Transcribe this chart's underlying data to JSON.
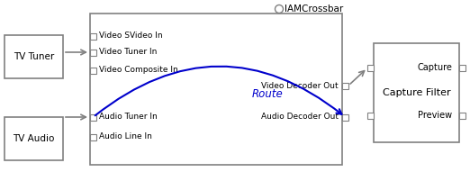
{
  "bg_color": "#ffffff",
  "box_color": "#808080",
  "route_color": "#0000cc",
  "text_color": "#000000",
  "tv_tuner_label": "TV Tuner",
  "tv_audio_label": "TV Audio",
  "crossbar_label": "IAMCrossbar",
  "capture_label": "Capture Filter",
  "pin_labels_in": [
    "Video SVideo In",
    "Video Tuner In",
    "Video Composite In",
    "Audio Tuner In",
    "Audio Line In"
  ],
  "route_label": "Route",
  "capture_text_top": "Capture",
  "capture_text_bottom": "Preview",
  "video_out_label": "Video Decoder Out",
  "audio_out_label": "Audio Decoder Out",
  "figsize": [
    5.22,
    1.91
  ],
  "dpi": 100
}
